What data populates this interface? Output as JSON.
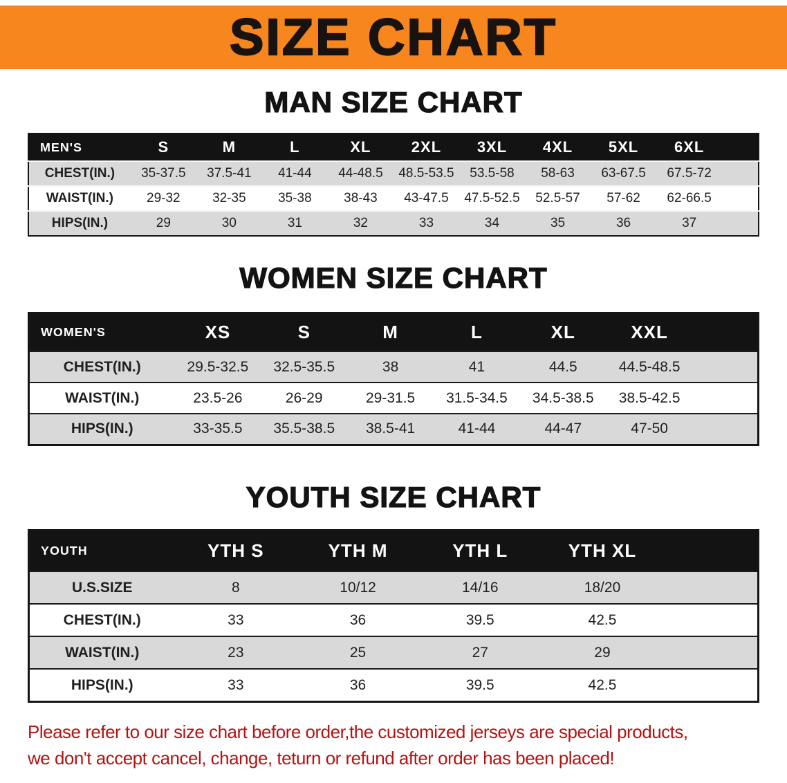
{
  "banner": {
    "title": "SIZE CHART",
    "bg": "#f6861d"
  },
  "colors": {
    "banner_orange": "#f6861d",
    "table_header_black": "#131313",
    "row_gray": "#d9d9d9",
    "disclaimer_red": "#b31312"
  },
  "sections": [
    {
      "heading": "MAN SIZE CHART",
      "table": {
        "header_label": "MEN'S",
        "columns": [
          "S",
          "M",
          "L",
          "XL",
          "2XL",
          "3XL",
          "4XL",
          "5XL",
          "6XL"
        ],
        "rows": [
          {
            "label": "CHEST(IN.)",
            "values": [
              "35-37.5",
              "37.5-41",
              "41-44",
              "44-48.5",
              "48.5-53.5",
              "53.5-58",
              "58-63",
              "63-67.5",
              "67.5-72"
            ]
          },
          {
            "label": "WAIST(IN.)",
            "values": [
              "29-32",
              "32-35",
              "35-38",
              "38-43",
              "43-47.5",
              "47.5-52.5",
              "52.5-57",
              "57-62",
              "62-66.5"
            ]
          },
          {
            "label": "HIPS(IN.)",
            "values": [
              "29",
              "30",
              "31",
              "32",
              "33",
              "34",
              "35",
              "36",
              "37"
            ]
          }
        ]
      }
    },
    {
      "heading": "WOMEN SIZE CHART",
      "table": {
        "header_label": "WOMEN'S",
        "columns": [
          "XS",
          "S",
          "M",
          "L",
          "XL",
          "XXL"
        ],
        "rows": [
          {
            "label": "CHEST(IN.)",
            "values": [
              "29.5-32.5",
              "32.5-35.5",
              "38",
              "41",
              "44.5",
              "44.5-48.5"
            ]
          },
          {
            "label": "WAIST(IN.)",
            "values": [
              "23.5-26",
              "26-29",
              "29-31.5",
              "31.5-34.5",
              "34.5-38.5",
              "38.5-42.5"
            ]
          },
          {
            "label": "HIPS(IN.)",
            "values": [
              "33-35.5",
              "35.5-38.5",
              "38.5-41",
              "41-44",
              "44-47",
              "47-50"
            ]
          }
        ]
      }
    },
    {
      "heading": "YOUTH SIZE CHART",
      "table": {
        "header_label": "YOUTH",
        "columns": [
          "YTH S",
          "YTH M",
          "YTH L",
          "YTH XL"
        ],
        "rows": [
          {
            "label": "U.S.SIZE",
            "values": [
              "8",
              "10/12",
              "14/16",
              "18/20"
            ]
          },
          {
            "label": "CHEST(IN.)",
            "values": [
              "33",
              "36",
              "39.5",
              "42.5"
            ]
          },
          {
            "label": "WAIST(IN.)",
            "values": [
              "23",
              "25",
              "27",
              "29"
            ]
          },
          {
            "label": "HIPS(IN.)",
            "values": [
              "33",
              "36",
              "39.5",
              "42.5"
            ]
          }
        ]
      }
    }
  ],
  "disclaimer": {
    "color": "#b31312",
    "lines": [
      "Please refer to our size chart before order,the customized jerseys are special products,",
      "we don't accept cancel, change, teturn or refund after order has been placed!"
    ]
  }
}
